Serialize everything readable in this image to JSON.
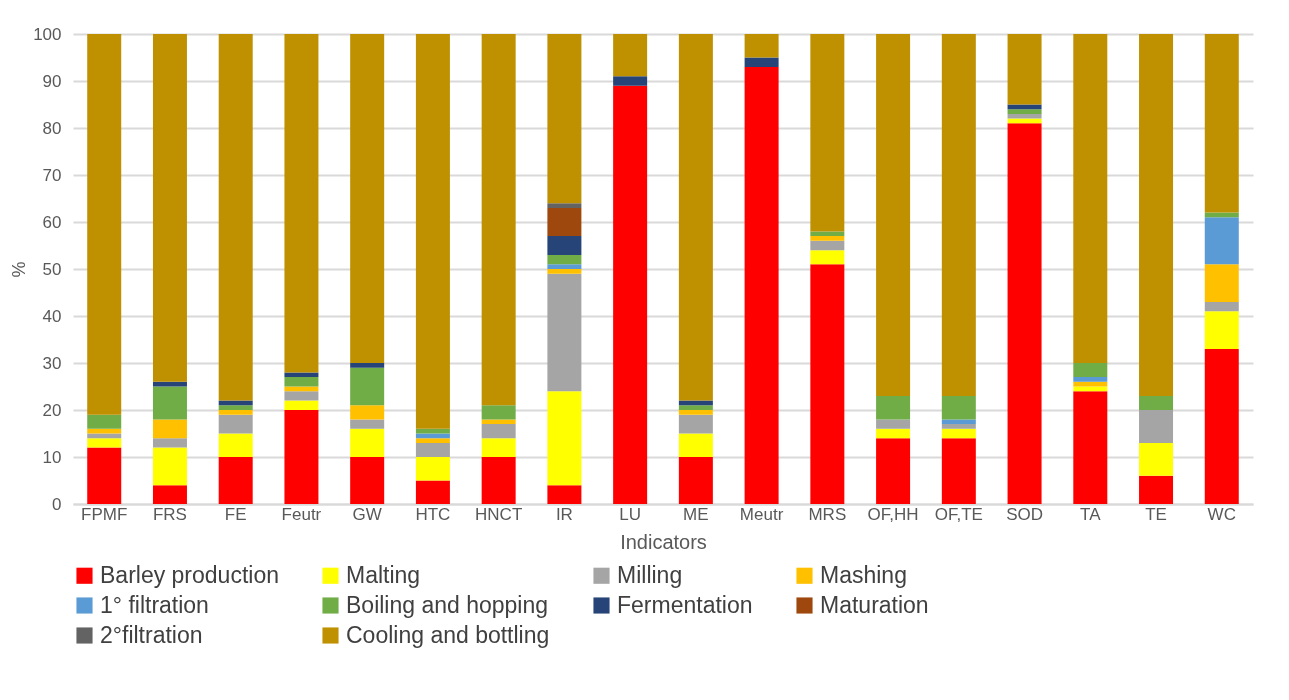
{
  "chart_data": {
    "type": "bar",
    "stacked": true,
    "xlabel": "Indicators",
    "ylabel": "%",
    "categories": [
      "FPMF",
      "FRS",
      "FE",
      "Feutr",
      "GW",
      "HTC",
      "HNCT",
      "IR",
      "LU",
      "ME",
      "Meutr",
      "MRS",
      "OF,HH",
      "OF,TE",
      "SOD",
      "TA",
      "TE",
      "WC"
    ],
    "series": [
      {
        "name": "Barley production",
        "color": "#ff0000",
        "values": [
          12,
          4,
          10,
          20,
          10,
          5,
          10,
          4,
          89,
          10,
          93,
          51,
          14,
          14,
          81,
          24,
          6,
          33
        ]
      },
      {
        "name": "Malting",
        "color": "#ffff00",
        "values": [
          2,
          8,
          5,
          2,
          6,
          5,
          4,
          20,
          0,
          5,
          0,
          3,
          2,
          2,
          1,
          1,
          7,
          8
        ]
      },
      {
        "name": "Milling",
        "color": "#a5a5a5",
        "values": [
          1,
          2,
          4,
          2,
          2,
          3,
          3,
          25,
          0,
          4,
          0,
          2,
          2,
          1,
          1,
          0,
          7,
          2
        ]
      },
      {
        "name": "Mashing",
        "color": "#ffc000",
        "values": [
          1,
          4,
          1,
          1,
          3,
          1,
          1,
          1,
          0,
          1,
          0,
          1,
          0,
          0,
          0,
          1,
          0,
          8
        ]
      },
      {
        "name": "1° filtration",
        "color": "#5b9bd5",
        "values": [
          0,
          0,
          0,
          0,
          0,
          1,
          0,
          1,
          0,
          0,
          0,
          0,
          0,
          1,
          0,
          1,
          0,
          10
        ]
      },
      {
        "name": "Boiling and hopping",
        "color": "#70ad47",
        "values": [
          3,
          7,
          1,
          2,
          8,
          1,
          3,
          2,
          0,
          1,
          0,
          1,
          5,
          5,
          1,
          3,
          3,
          1
        ]
      },
      {
        "name": "Fermentation",
        "color": "#264478",
        "values": [
          0,
          1,
          1,
          1,
          1,
          0,
          0,
          4,
          2,
          1,
          2,
          0,
          0,
          0,
          1,
          0,
          0,
          0
        ]
      },
      {
        "name": "Maturation",
        "color": "#9e480e",
        "values": [
          0,
          0,
          0,
          0,
          0,
          0,
          0,
          6,
          0,
          0,
          0,
          0,
          0,
          0,
          0,
          0,
          0,
          0
        ]
      },
      {
        "name": "2°filtration",
        "color": "#636363",
        "values": [
          0,
          0,
          0,
          0,
          0,
          0,
          0,
          1,
          0,
          0,
          0,
          0,
          0,
          0,
          0,
          0,
          0,
          0
        ]
      },
      {
        "name": "Cooling and bottling",
        "color": "#bf9000",
        "values": [
          81,
          74,
          78,
          72,
          70,
          84,
          79,
          36,
          9,
          78,
          5,
          42,
          77,
          77,
          15,
          70,
          77,
          38
        ]
      }
    ],
    "ylim": [
      0,
      100
    ],
    "yticks": [
      0,
      10,
      20,
      30,
      40,
      50,
      60,
      70,
      80,
      90,
      100
    ],
    "grid": "y",
    "legend": "bottom"
  }
}
